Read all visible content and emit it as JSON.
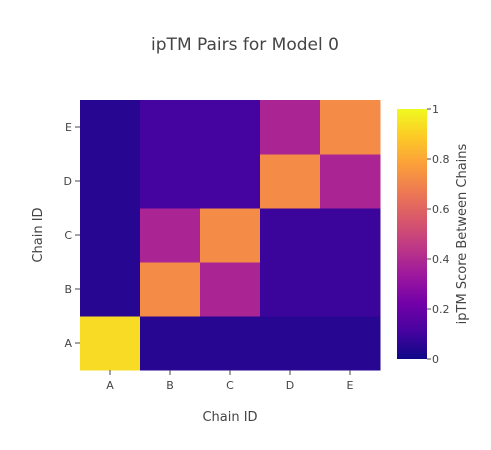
{
  "chart_data": {
    "type": "heatmap",
    "title": "ipTM Pairs for Model 0",
    "xlabel": "Chain ID",
    "ylabel": "Chain ID",
    "x": [
      "A",
      "B",
      "C",
      "D",
      "E"
    ],
    "y": [
      "A",
      "B",
      "C",
      "D",
      "E"
    ],
    "z": [
      [
        0.93,
        0.05,
        0.05,
        0.05,
        0.05
      ],
      [
        0.05,
        0.72,
        0.38,
        0.09,
        0.09
      ],
      [
        0.05,
        0.38,
        0.72,
        0.09,
        0.09
      ],
      [
        0.05,
        0.11,
        0.11,
        0.72,
        0.38
      ],
      [
        0.05,
        0.11,
        0.11,
        0.38,
        0.72
      ]
    ],
    "zlim": [
      0,
      1
    ],
    "colorscale": "plasma",
    "colorbar": {
      "title": "ipTM Score Between Chains",
      "ticks": [
        0,
        0.2,
        0.4,
        0.6,
        0.8,
        1
      ],
      "tick_labels": [
        "0",
        "0.2",
        "0.4",
        "0.6",
        "0.8",
        "1"
      ]
    }
  }
}
